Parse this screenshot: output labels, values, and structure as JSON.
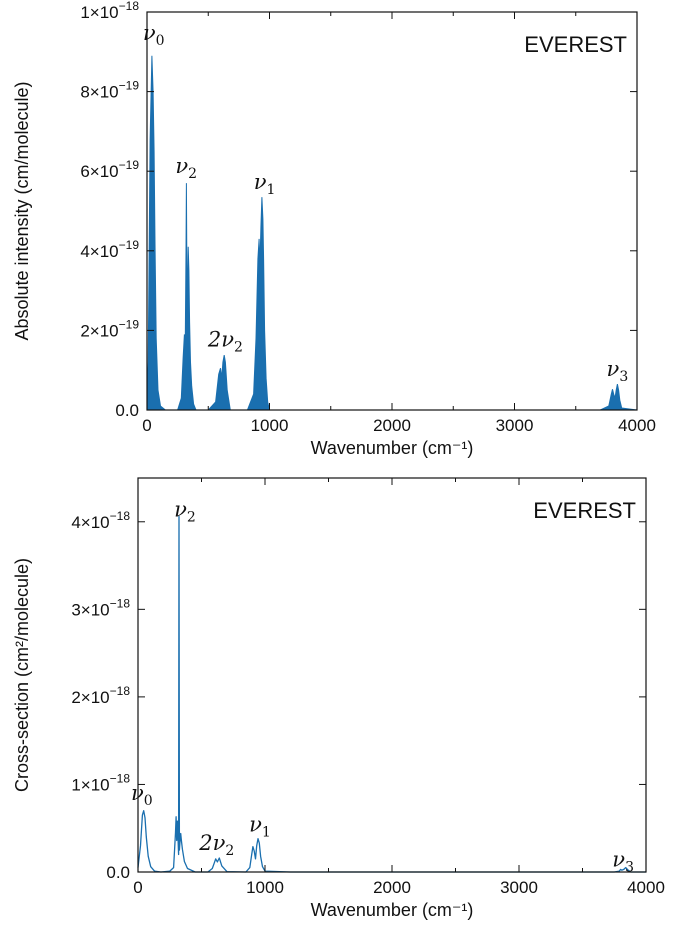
{
  "chart_data": [
    {
      "type": "area",
      "title": "EVEREST",
      "xlabel": "Wavenumber (cm⁻¹)",
      "ylabel": "Absolute intensity (cm/molecule)",
      "xlim": [
        0,
        4000
      ],
      "ylim": [
        0,
        1e-18
      ],
      "xticks": [
        {
          "value": 0,
          "label": "0"
        },
        {
          "value": 1000,
          "label": "1000"
        },
        {
          "value": 2000,
          "label": "2000"
        },
        {
          "value": 3000,
          "label": "3000"
        },
        {
          "value": 4000,
          "label": "4000"
        }
      ],
      "yticks": [
        {
          "value": 0,
          "label": "0.0",
          "mantissa": "",
          "exponent": ""
        },
        {
          "value": 2e-19,
          "label": "2×10⁻¹⁹",
          "mantissa": "2×10",
          "exponent": "−19"
        },
        {
          "value": 4e-19,
          "label": "4×10⁻¹⁹",
          "mantissa": "4×10",
          "exponent": "−19"
        },
        {
          "value": 6e-19,
          "label": "6×10⁻¹⁹",
          "mantissa": "6×10",
          "exponent": "−19"
        },
        {
          "value": 8e-19,
          "label": "8×10⁻¹⁹",
          "mantissa": "8×10",
          "exponent": "−19"
        },
        {
          "value": 1e-18,
          "label": "1×10⁻¹⁸",
          "mantissa": "1×10",
          "exponent": "−18"
        }
      ],
      "grid": false,
      "color": "#1a6faf",
      "series": [
        {
          "x": [
            0,
            10,
            25,
            40,
            50,
            58,
            65,
            75,
            90,
            110,
            150,
            250,
            280,
            295,
            305,
            312,
            318,
            322,
            326,
            330,
            336,
            342,
            348,
            355,
            365,
            380,
            400,
            500,
            560,
            585,
            600,
            610,
            620,
            630,
            640,
            655,
            680,
            820,
            870,
            890,
            905,
            915,
            922,
            930,
            938,
            946,
            952,
            960,
            972,
            985,
            1000,
            1050,
            1200,
            1300,
            1500,
            1800,
            1850,
            2000,
            3000,
            3700,
            3770,
            3790,
            3800,
            3810,
            3820,
            3830,
            3840,
            3850,
            3860,
            3875,
            4000
          ],
          "y": [
            2e-20,
            1.2e-19,
            6.8e-19,
            8.9e-19,
            8e-19,
            6.5e-19,
            4.2e-19,
            1.8e-19,
            5e-20,
            1e-20,
            0,
            0,
            3e-20,
            1.3e-19,
            1.9e-19,
            1.5e-19,
            4e-19,
            5.7e-19,
            3.4e-19,
            2.8e-19,
            4.1e-19,
            3.5e-19,
            2.2e-19,
            1.2e-19,
            6e-20,
            1.5e-20,
            0,
            0,
            2e-20,
            9e-20,
            1.05e-19,
            8e-20,
            1.2e-19,
            1.38e-19,
            1.2e-19,
            5e-20,
            0,
            0,
            4e-20,
            1.8e-19,
            3.8e-19,
            4.3e-19,
            3.6e-19,
            4.6e-19,
            5.35e-19,
            4.8e-19,
            3.8e-19,
            2e-19,
            8e-20,
            2e-20,
            0,
            0,
            0,
            0,
            0,
            0,
            0,
            0,
            0,
            0,
            1e-20,
            4e-20,
            5.2e-20,
            4e-20,
            3e-20,
            5e-20,
            6.5e-20,
            5e-20,
            2.5e-20,
            5e-21,
            0
          ]
        }
      ],
      "annotations": [
        {
          "base": "ν",
          "sub": "0",
          "x": 55,
          "y": 9.3e-19
        },
        {
          "base": "ν",
          "sub": "2",
          "x": 320,
          "y": 5.95e-19
        },
        {
          "base": "ν",
          "sub": "1",
          "x": 960,
          "y": 5.55e-19
        },
        {
          "base": "2ν",
          "sub": "2",
          "x": 640,
          "y": 1.6e-19
        },
        {
          "base": "ν",
          "sub": "3",
          "x": 3840,
          "y": 8.5e-20
        }
      ]
    },
    {
      "type": "line",
      "title": "EVEREST",
      "xlabel": "Wavenumber (cm⁻¹)",
      "ylabel": "Cross-section (cm²/molecule)",
      "xlim": [
        0,
        4000
      ],
      "ylim": [
        0,
        4.5e-18
      ],
      "xticks": [
        {
          "value": 0,
          "label": "0"
        },
        {
          "value": 1000,
          "label": "1000"
        },
        {
          "value": 2000,
          "label": "2000"
        },
        {
          "value": 3000,
          "label": "3000"
        },
        {
          "value": 4000,
          "label": "4000"
        }
      ],
      "yticks": [
        {
          "value": 0,
          "label": "0.0",
          "mantissa": "",
          "exponent": ""
        },
        {
          "value": 1e-18,
          "label": "1×10⁻¹⁸",
          "mantissa": "1×10",
          "exponent": "−18"
        },
        {
          "value": 2e-18,
          "label": "2×10⁻¹⁸",
          "mantissa": "2×10",
          "exponent": "−18"
        },
        {
          "value": 3e-18,
          "label": "3×10⁻¹⁸",
          "mantissa": "3×10",
          "exponent": "−18"
        },
        {
          "value": 4e-18,
          "label": "4×10⁻¹⁸",
          "mantissa": "4×10",
          "exponent": "−18"
        }
      ],
      "grid": false,
      "color": "#1a6faf",
      "series": [
        {
          "x": [
            0,
            20,
            35,
            45,
            55,
            65,
            80,
            100,
            130,
            180,
            250,
            280,
            295,
            300,
            305,
            310,
            315,
            320,
            323,
            326,
            330,
            336,
            342,
            350,
            365,
            390,
            450,
            550,
            585,
            600,
            612,
            625,
            640,
            660,
            700,
            850,
            880,
            895,
            905,
            915,
            925,
            935,
            945,
            955,
            965,
            980,
            1000,
            1200,
            1400,
            2000,
            3000,
            3750,
            3790,
            3800,
            3810,
            3825,
            3840,
            3860,
            3880,
            4000
          ],
          "y": [
            5e-20,
            3e-19,
            6.5e-19,
            7e-19,
            6.2e-19,
            4e-19,
            1.8e-19,
            6e-20,
            1e-20,
            0,
            1e-20,
            5e-20,
            4.5e-19,
            6.3e-19,
            3.6e-19,
            5.8e-19,
            3.9e-19,
            2e-19,
            4.06e-18,
            2.5e-19,
            3.3e-19,
            4.4e-19,
            3.6e-19,
            2.6e-19,
            1.2e-19,
            4e-20,
            0,
            0,
            4e-20,
            1e-19,
            1.5e-19,
            1.15e-19,
            1.6e-19,
            7e-20,
            5e-21,
            0,
            5e-20,
            2e-19,
            2.9e-19,
            2.4e-19,
            1.5e-19,
            3e-19,
            3.8e-19,
            3.3e-19,
            1.8e-19,
            6e-20,
            1e-20,
            0,
            0,
            0,
            0,
            0,
            1e-20,
            3e-20,
            2e-20,
            3e-20,
            5e-20,
            2e-20,
            0,
            0
          ]
        }
      ],
      "annotations": [
        {
          "base": "ν",
          "sub": "0",
          "x": 30,
          "y": 8.2e-19
        },
        {
          "base": "ν",
          "sub": "2",
          "x": 370,
          "y": 4.06e-18
        },
        {
          "base": "2ν",
          "sub": "2",
          "x": 620,
          "y": 2.5e-19
        },
        {
          "base": "ν",
          "sub": "1",
          "x": 960,
          "y": 4.6e-19
        },
        {
          "base": "ν",
          "sub": "3",
          "x": 3820,
          "y": 6e-20
        }
      ]
    }
  ]
}
